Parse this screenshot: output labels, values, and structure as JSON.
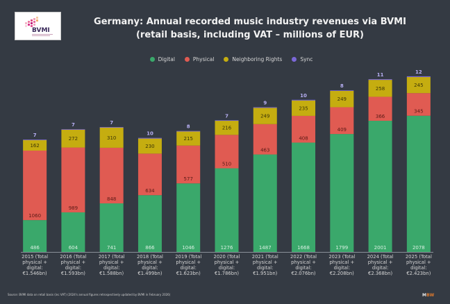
{
  "logo": {
    "text": "BVMI",
    "subtext": "Bundesverband Musikindustrie"
  },
  "title_line1": "Germany: Annual recorded music industry revenues via BVMI",
  "title_line2": "(retail basis, including VAT – millions of EUR)",
  "legend": [
    {
      "label": "Digital",
      "color": "#3aa86b"
    },
    {
      "label": "Physical",
      "color": "#e05b52"
    },
    {
      "label": "Neighboring Rights",
      "color": "#c5ad10"
    },
    {
      "label": "Sync",
      "color": "#7b68d8"
    }
  ],
  "source": "Source: BVMI data on retail basis (inc VAT) (2024's annual figures retrospectively updated by BVMI in February 2026)",
  "brand": {
    "m": "M",
    "bw": "BW"
  },
  "chart_data": {
    "type": "bar",
    "stacked": true,
    "title": "Germany: Annual recorded music industry revenues via BVMI (retail basis, including VAT – millions of EUR)",
    "xlabel": "",
    "ylabel": "",
    "ylim": [
      0,
      2700
    ],
    "grid": false,
    "legend_position": "top-center",
    "categories": [
      [
        "2015 (Total",
        "physical +",
        "digital:",
        "€1.546bn)"
      ],
      [
        "2016 (Total",
        "physical +",
        "digital:",
        "€1.593bn)"
      ],
      [
        "2017 (Total",
        "physical +",
        "digital:",
        "€1.588bn)"
      ],
      [
        "2018 (Total",
        "physical +",
        "digital:",
        "€1.499bn)"
      ],
      [
        "2019 (Total",
        "physical +",
        "digital:",
        "€1.623bn)"
      ],
      [
        "2020 (Total",
        "physical +",
        "digital:",
        "€1.786bn)"
      ],
      [
        "2021 (Total",
        "physical +",
        "digital:",
        "€1.951bn)"
      ],
      [
        "2022 (Total",
        "physical +",
        "digital:",
        "€2.076bn)"
      ],
      [
        "2023 (Total",
        "physical +",
        "digital:",
        "€2.208bn)"
      ],
      [
        "2024 (Total",
        "physical +",
        "digital:",
        "€2.368bn)"
      ],
      [
        "2025 (Total",
        "physical +",
        "digital:",
        "€2.423bn)"
      ]
    ],
    "series": [
      {
        "name": "Digital",
        "color": "#3aa86b",
        "label_color": "#d9f0e2",
        "values": [
          486,
          604,
          741,
          866,
          1046,
          1276,
          1487,
          1668,
          1799,
          2001,
          2078
        ]
      },
      {
        "name": "Physical",
        "color": "#e05b52",
        "label_color": "#5a1a16",
        "values": [
          1060,
          989,
          848,
          634,
          577,
          510,
          463,
          408,
          409,
          366,
          345
        ]
      },
      {
        "name": "Neighboring Rights",
        "color": "#c5ad10",
        "label_color": "#3a3408",
        "values": [
          162,
          272,
          310,
          230,
          215,
          216,
          249,
          235,
          249,
          258,
          245
        ]
      },
      {
        "name": "Sync",
        "color": "#7b68d8",
        "label_color": "#b8b0f5",
        "values": [
          7,
          7,
          7,
          10,
          8,
          7,
          9,
          10,
          8,
          11,
          12
        ]
      }
    ]
  }
}
